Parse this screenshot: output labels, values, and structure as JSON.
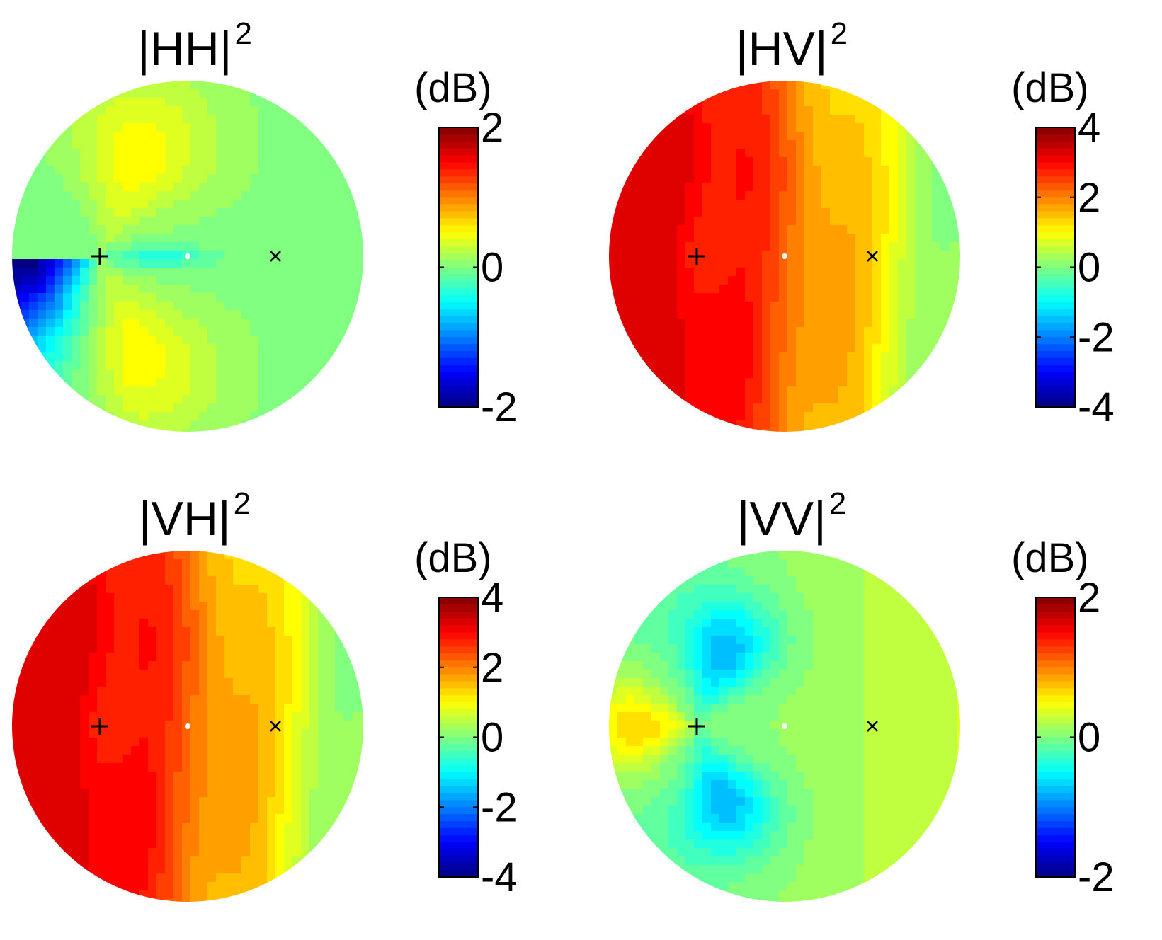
{
  "chart_data": [
    {
      "type": "heatmap",
      "panel": "HH",
      "title_text": "|HH|",
      "title_exponent": "2",
      "colorbar_label": "(dB)",
      "colorbar_range": [
        -2,
        2
      ],
      "colorbar_ticks": [
        2,
        0,
        -2
      ],
      "colorbar_tick_labels": [
        "2",
        "0",
        "-2"
      ],
      "colormap": "jet",
      "field_pattern": "hh",
      "markers": [
        "+",
        "•",
        "×"
      ]
    },
    {
      "type": "heatmap",
      "panel": "HV",
      "title_text": "|HV|",
      "title_exponent": "2",
      "colorbar_label": "(dB)",
      "colorbar_range": [
        -4,
        4
      ],
      "colorbar_ticks": [
        4,
        2,
        0,
        -2,
        -4
      ],
      "colorbar_tick_labels": [
        "4",
        "2",
        "0",
        "-2",
        "-4"
      ],
      "colormap": "jet",
      "field_pattern": "cross",
      "markers": [
        "+",
        "•",
        "×"
      ]
    },
    {
      "type": "heatmap",
      "panel": "VH",
      "title_text": "|VH|",
      "title_exponent": "2",
      "colorbar_label": "(dB)",
      "colorbar_range": [
        -4,
        4
      ],
      "colorbar_ticks": [
        4,
        2,
        0,
        -2,
        -4
      ],
      "colorbar_tick_labels": [
        "4",
        "2",
        "0",
        "-2",
        "-4"
      ],
      "colormap": "jet",
      "field_pattern": "cross",
      "markers": [
        "+",
        "•",
        "×"
      ]
    },
    {
      "type": "heatmap",
      "panel": "VV",
      "title_text": "|VV|",
      "title_exponent": "2",
      "colorbar_label": "(dB)",
      "colorbar_range": [
        -2,
        2
      ],
      "colorbar_ticks": [
        2,
        0,
        -2
      ],
      "colorbar_tick_labels": [
        "2",
        "0",
        "-2"
      ],
      "colormap": "jet",
      "field_pattern": "vv",
      "markers": [
        "+",
        "•",
        "×"
      ]
    }
  ]
}
